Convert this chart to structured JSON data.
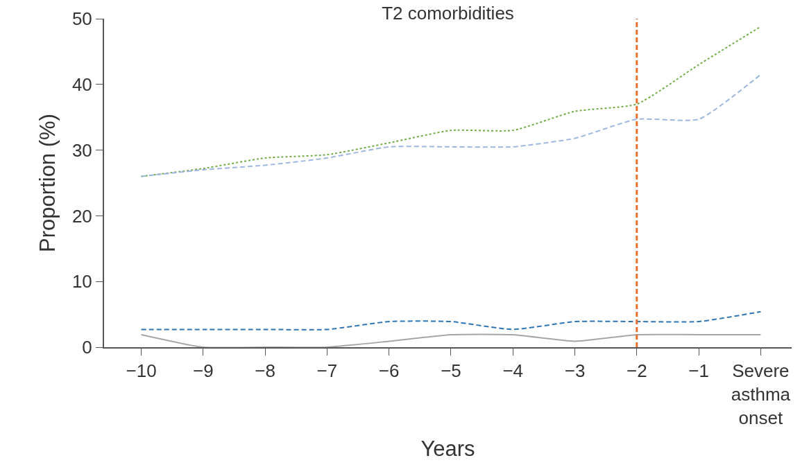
{
  "chart_data": {
    "type": "line",
    "title": "T2 comorbidities",
    "xlabel": "Years",
    "ylabel": "Proportion (%)",
    "categories": [
      "−10",
      "−9",
      "−8",
      "−7",
      "−6",
      "−5",
      "−4",
      "−3",
      "−2",
      "−1",
      "Severe asthma onset"
    ],
    "series": [
      {
        "color": "#70ad47",
        "line_style": "dotted",
        "values": [
          26,
          27.2,
          28.8,
          29.3,
          31.1,
          33,
          33,
          35.9,
          37,
          43,
          48.8
        ]
      },
      {
        "color": "#9db7e0",
        "line_style": "dashed",
        "values": [
          26,
          27,
          27.7,
          28.8,
          30.5,
          30.5,
          30.5,
          31.8,
          34.7,
          34.7,
          41.5
        ]
      },
      {
        "color": "#2e75b6",
        "line_style": "dashed",
        "values": [
          2.7,
          2.7,
          2.7,
          2.7,
          3.9,
          3.9,
          2.7,
          3.9,
          3.9,
          3.9,
          5.4
        ]
      },
      {
        "color": "#a6a6a6",
        "line_style": "solid",
        "values": [
          1.9,
          0,
          0,
          0,
          0.9,
          1.9,
          1.9,
          0.9,
          1.9,
          1.9,
          1.9
        ]
      }
    ],
    "ylim": [
      0,
      50
    ],
    "yticks": [
      0,
      10,
      20,
      30,
      40,
      50
    ],
    "ref_lines": [
      {
        "axis": "x",
        "value": "−2",
        "color": "#e8702a",
        "line_style": "dashed"
      }
    ]
  }
}
